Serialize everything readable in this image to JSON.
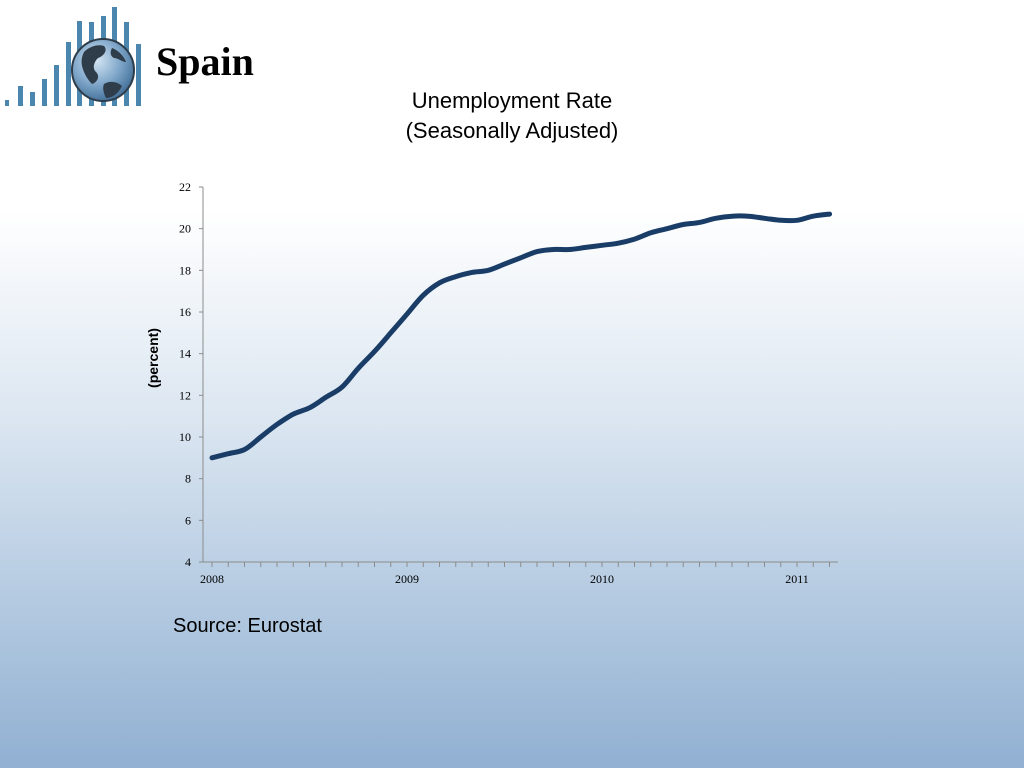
{
  "header": {
    "country": "Spain",
    "logo_icon": "globe-with-bars-icon"
  },
  "chart_data": {
    "type": "line",
    "title_line1": "Unemployment Rate",
    "title_line2": "(Seasonally Adjusted)",
    "xlabel": "",
    "ylabel": "(percent)",
    "ylim": [
      4,
      22
    ],
    "yticks": [
      4,
      6,
      8,
      10,
      12,
      14,
      16,
      18,
      20,
      22
    ],
    "xlim": [
      2008,
      2011.25
    ],
    "xtick_labels": [
      "2008",
      "2009",
      "2010",
      "2011"
    ],
    "grid": false,
    "line_color": "#1a3d68",
    "series": [
      {
        "name": "",
        "x": [
          2008.0,
          2008.083,
          2008.167,
          2008.25,
          2008.333,
          2008.417,
          2008.5,
          2008.583,
          2008.667,
          2008.75,
          2008.833,
          2008.917,
          2009.0,
          2009.083,
          2009.167,
          2009.25,
          2009.333,
          2009.417,
          2009.5,
          2009.583,
          2009.667,
          2009.75,
          2009.833,
          2009.917,
          2010.0,
          2010.083,
          2010.167,
          2010.25,
          2010.333,
          2010.417,
          2010.5,
          2010.583,
          2010.667,
          2010.75,
          2010.833,
          2010.917,
          2011.0,
          2011.083,
          2011.167
        ],
        "values": [
          9.0,
          9.2,
          9.4,
          10.0,
          10.6,
          11.1,
          11.4,
          11.9,
          12.4,
          13.3,
          14.1,
          15.0,
          15.9,
          16.8,
          17.4,
          17.7,
          17.9,
          18.0,
          18.3,
          18.6,
          18.9,
          19.0,
          19.0,
          19.1,
          19.2,
          19.3,
          19.5,
          19.8,
          20.0,
          20.2,
          20.3,
          20.5,
          20.6,
          20.6,
          20.5,
          20.4,
          20.4,
          20.6,
          20.7
        ]
      }
    ]
  },
  "footer": {
    "source": "Source: Eurostat"
  }
}
